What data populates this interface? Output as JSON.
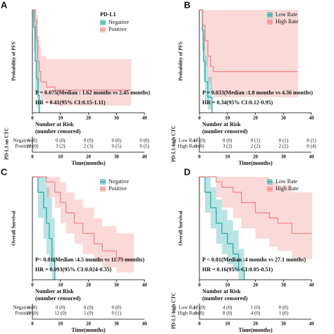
{
  "chart_data": [
    {
      "type": "line",
      "label": "A",
      "y_label": "Probability of PFS",
      "x_label": "Time(months)",
      "legend_title": "PD-L1",
      "xlim": [
        0,
        40
      ],
      "ylim": [
        0,
        1
      ],
      "xticks": [
        0,
        10,
        20,
        30,
        40
      ],
      "annotations": [
        "P = 0.075(Median : 1.62 months vs 2.45 months)",
        "HR = 0.41(95% CI:0.15-1.11)"
      ],
      "series": [
        {
          "name": "Negative",
          "color": "#1aa5a5",
          "x": [
            0,
            0.5,
            1,
            1.5,
            2,
            2.5
          ],
          "values": [
            1,
            0.83,
            0.5,
            0.33,
            0.17,
            0
          ],
          "lower": [
            1,
            0.6,
            0.2,
            0.05,
            0,
            0
          ],
          "upper": [
            1,
            1,
            0.9,
            0.75,
            0.5,
            0
          ]
        },
        {
          "name": "Positive",
          "color": "#f08080",
          "x": [
            0,
            1,
            1.5,
            2,
            2.5,
            3,
            5,
            8,
            35
          ],
          "values": [
            1,
            0.9,
            0.7,
            0.5,
            0.4,
            0.3,
            0.25,
            0.22,
            0.22
          ],
          "lower": [
            1,
            0.75,
            0.5,
            0.3,
            0.2,
            0.12,
            0.09,
            0.07,
            0.07
          ],
          "upper": [
            1,
            1,
            0.95,
            0.75,
            0.65,
            0.55,
            0.52,
            0.52,
            0.52
          ]
        }
      ],
      "risk_table": {
        "title": "Number at Risk",
        "subtitle": "(number censored)",
        "y_label": "PD-L1 on CTC",
        "x_label": "Time(months)",
        "rows": [
          {
            "label": "Negative",
            "cells": [
              "6 (0)",
              "0 (0)",
              "0 (0)",
              "0 (0)",
              "0 (0)"
            ]
          },
          {
            "label": "Positive",
            "cells": [
              "20 (0)",
              "3 (2)",
              "2 (3)",
              "0 (5)",
              "0 (5)"
            ]
          }
        ]
      }
    },
    {
      "type": "line",
      "label": "B",
      "y_label": "Probability of PFS",
      "x_label": "Time(months)",
      "xlim": [
        0,
        40
      ],
      "ylim": [
        0,
        1
      ],
      "xticks": [
        0,
        10,
        20,
        30,
        40
      ],
      "annotations": [
        "P = 0.033(Median :1.8 months vs 4.36 months)",
        "HR = 0.34(95% CI:0.12-0.95)"
      ],
      "series": [
        {
          "name": "Low Rate",
          "color": "#1aa5a5",
          "x": [
            0,
            1,
            1.5,
            2,
            3,
            4.5
          ],
          "values": [
            1,
            0.8,
            0.5,
            0.3,
            0.15,
            0
          ],
          "lower": [
            1,
            0.6,
            0.3,
            0.12,
            0.03,
            0
          ],
          "upper": [
            1,
            1,
            0.75,
            0.55,
            0.35,
            0
          ]
        },
        {
          "name": "High Rate",
          "color": "#f08080",
          "x": [
            0,
            1,
            2,
            3,
            4,
            5,
            35
          ],
          "values": [
            1,
            0.85,
            0.7,
            0.55,
            0.45,
            0.4,
            0.4
          ],
          "lower": [
            1,
            0.6,
            0.45,
            0.3,
            0.2,
            0.15,
            0.15
          ],
          "upper": [
            1,
            1,
            1,
            1,
            1,
            1,
            1
          ]
        }
      ],
      "risk_table": {
        "title": "Number at Risk",
        "subtitle": "(number censored)",
        "y_label": "PD-L1-high CTC",
        "x_label": "Time(months)",
        "rows": [
          {
            "label": "Low Rate",
            "cells": [
              "17 (0)",
              "0 (0)",
              "0 (1)",
              "0 (1)",
              "0 (1)"
            ]
          },
          {
            "label": "High Rate",
            "cells": [
              "9 (0)",
              "3 (2)",
              "2 (2)",
              "2 (2)",
              "0 (4)"
            ]
          }
        ]
      }
    },
    {
      "type": "line",
      "label": "C",
      "y_label": "Overall Survival",
      "x_label": "Time(months)",
      "xlim": [
        0,
        40
      ],
      "ylim": [
        0,
        1
      ],
      "xticks": [
        0,
        10,
        20,
        30,
        40
      ],
      "annotations": [
        "P< 0.01(Median :4.5 months vs 11.75 months)",
        "HR = 0.093(95% CI:0.024-0.35)"
      ],
      "series": [
        {
          "name": "Negative",
          "color": "#1aa5a5",
          "x": [
            0,
            2,
            4,
            5,
            6,
            7,
            8
          ],
          "values": [
            1,
            0.85,
            0.7,
            0.55,
            0.4,
            0.2,
            0
          ],
          "lower": [
            1,
            0.6,
            0.4,
            0.25,
            0.1,
            0,
            0
          ],
          "upper": [
            1,
            1,
            1,
            0.9,
            0.8,
            0.6,
            0
          ]
        },
        {
          "name": "Positive",
          "color": "#f08080",
          "x": [
            0,
            5,
            8,
            10,
            12,
            15,
            18,
            22,
            25,
            30,
            36
          ],
          "values": [
            1,
            0.95,
            0.85,
            0.75,
            0.65,
            0.55,
            0.45,
            0.35,
            0.28,
            0.2,
            0.2
          ],
          "lower": [
            1,
            0.8,
            0.7,
            0.55,
            0.45,
            0.35,
            0.25,
            0.17,
            0.12,
            0.07,
            0.07
          ],
          "upper": [
            1,
            1,
            1,
            0.95,
            0.85,
            0.78,
            0.7,
            0.6,
            0.52,
            0.45,
            0.45
          ]
        }
      ],
      "risk_table": {
        "title": "Number at Risk",
        "subtitle": "(number censored)",
        "x_label": "Time(months)",
        "rows": [
          {
            "label": "Negative",
            "cells": [
              "6 (0)",
              "0 (0)",
              "0 (0)",
              "0 (0)"
            ]
          },
          {
            "label": "Positive",
            "cells": [
              "20 (0)",
              "12 (0)",
              "5 (0)",
              "0 (1)"
            ]
          }
        ]
      }
    },
    {
      "type": "line",
      "label": "D",
      "y_label": "Overall Survival",
      "x_label": "Time(months)",
      "xlim": [
        0,
        40
      ],
      "ylim": [
        0,
        1
      ],
      "xticks": [
        0,
        10,
        20,
        30,
        40
      ],
      "annotations": [
        "P < 0.01(Median :4 months vs 27.1 months)",
        "HR = 0.16(95% CI:0.05-0.51)"
      ],
      "series": [
        {
          "name": "Low Rate",
          "color": "#1aa5a5",
          "x": [
            0,
            2,
            4,
            6,
            8,
            10,
            12,
            14,
            16
          ],
          "values": [
            1,
            0.85,
            0.7,
            0.55,
            0.45,
            0.35,
            0.25,
            0.1,
            0
          ],
          "lower": [
            1,
            0.65,
            0.5,
            0.35,
            0.25,
            0.15,
            0.08,
            0,
            0
          ],
          "upper": [
            1,
            1,
            0.9,
            0.78,
            0.68,
            0.58,
            0.48,
            0.3,
            0
          ]
        },
        {
          "name": "High Rate",
          "color": "#f08080",
          "x": [
            0,
            3,
            6,
            8,
            12,
            15,
            20,
            25,
            28,
            33,
            40
          ],
          "values": [
            1,
            1,
            0.95,
            0.9,
            0.85,
            0.75,
            0.65,
            0.6,
            0.55,
            0.45,
            0.45
          ],
          "lower": [
            1,
            1,
            0.8,
            0.7,
            0.6,
            0.5,
            0.4,
            0.32,
            0.28,
            0.2,
            0.2
          ],
          "upper": [
            1,
            1,
            1,
            1,
            1,
            1,
            1,
            0.95,
            0.92,
            0.85,
            0.85
          ]
        }
      ],
      "risk_table": {
        "title": "Number at Risk",
        "subtitle": "(number censored)",
        "y_label": "PD-L1-high CTC",
        "x_label": "Time(months)",
        "rows": [
          {
            "label": "Low Rate",
            "cells": [
              "17 (0)",
              "4 (0)",
              "1 (0)",
              "0 (0)"
            ]
          },
          {
            "label": "High Rate",
            "cells": [
              "9 (0)",
              "8 (0)",
              "4 (0)",
              "1 (0)"
            ]
          }
        ]
      }
    }
  ]
}
